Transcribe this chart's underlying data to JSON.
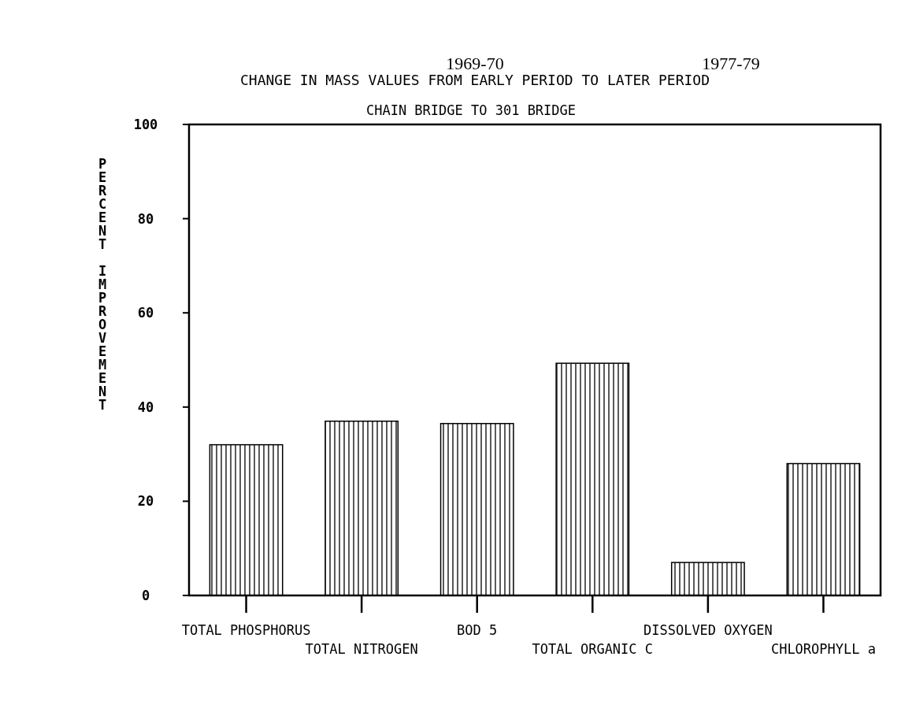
{
  "chart_data": {
    "type": "bar",
    "title": "CHANGE IN MASS VALUES FROM EARLY PERIOD TO LATER PERIOD",
    "subtitle": "CHAIN BRIDGE TO 301 BRIDGE",
    "ylabel": "PERCENT IMPROVEMENT",
    "annotations": [
      "1969-70",
      "1977-79"
    ],
    "categories": [
      "TOTAL PHOSPHORUS",
      "TOTAL NITROGEN",
      "BOD 5",
      "TOTAL ORGANIC C",
      "DISSOLVED OXYGEN",
      "CHLOROPHYLL a"
    ],
    "values": [
      32,
      37,
      36.5,
      49.3,
      7,
      28
    ],
    "color": "#000000",
    "ylim": [
      0,
      100
    ],
    "yticks": [
      0,
      20,
      40,
      60,
      80,
      100
    ],
    "grid": false
  }
}
